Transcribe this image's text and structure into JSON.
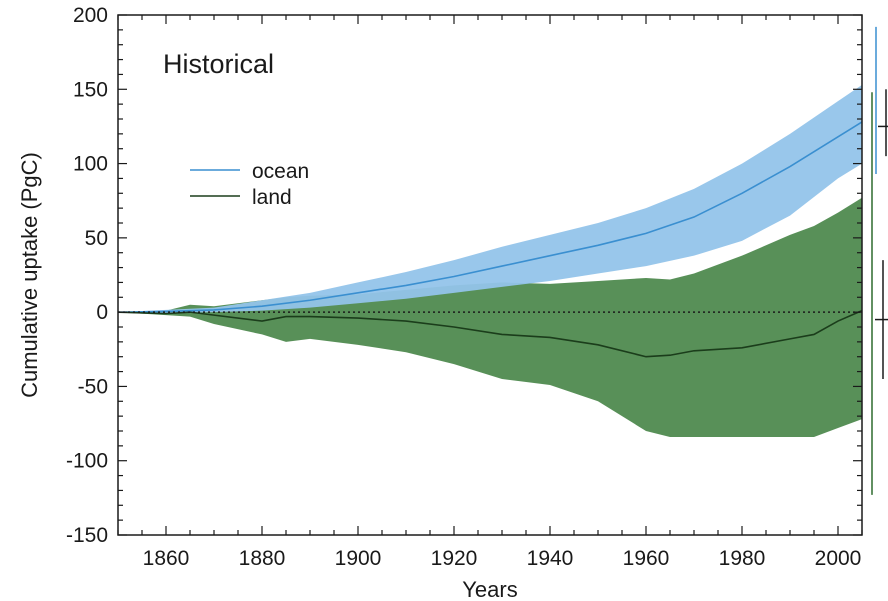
{
  "chart_data": {
    "type": "area",
    "panel_label": "Historical",
    "xlabel": "Years",
    "ylabel": "Cumulative uptake (PgC)",
    "xlim": [
      1850,
      2005
    ],
    "ylim": [
      -150,
      200
    ],
    "x_ticks": [
      1860,
      1880,
      1900,
      1920,
      1940,
      1960,
      1980,
      2000
    ],
    "y_ticks": [
      -150,
      -100,
      -50,
      0,
      50,
      100,
      150,
      200
    ],
    "legend_position": "upper-left",
    "zero_line": "dotted",
    "series": [
      {
        "name": "ocean",
        "color": "#3a8fd0",
        "band_color": "#93c4ea",
        "x": [
          1850,
          1860,
          1870,
          1880,
          1890,
          1900,
          1910,
          1920,
          1930,
          1940,
          1950,
          1960,
          1970,
          1980,
          1990,
          2000,
          2005
        ],
        "mean": [
          0,
          0.5,
          1.5,
          4,
          8,
          13,
          18,
          24,
          31,
          38,
          45,
          53,
          64,
          80,
          98,
          118,
          128
        ],
        "lower": [
          0,
          -0.5,
          0,
          1,
          3,
          6,
          9,
          13,
          17,
          21,
          26,
          31,
          38,
          48,
          65,
          90,
          100
        ],
        "upper": [
          0,
          1.5,
          3,
          8,
          13,
          20,
          27,
          35,
          44,
          52,
          60,
          70,
          83,
          100,
          120,
          142,
          153
        ]
      },
      {
        "name": "land",
        "color": "#1b3d1b",
        "band_color": "#4f8a4f",
        "x": [
          1850,
          1860,
          1865,
          1870,
          1880,
          1885,
          1890,
          1900,
          1910,
          1920,
          1930,
          1940,
          1950,
          1960,
          1965,
          1970,
          1980,
          1990,
          1995,
          2000,
          2005
        ],
        "mean": [
          0,
          -1,
          0,
          -2,
          -6,
          -3,
          -3,
          -4,
          -6,
          -10,
          -15,
          -17,
          -22,
          -30,
          -29,
          -26,
          -24,
          -18,
          -15,
          -6,
          1
        ],
        "lower": [
          0,
          -2,
          -3,
          -8,
          -15,
          -20,
          -18,
          -22,
          -27,
          -35,
          -45,
          -49,
          -60,
          -80,
          -84,
          -84,
          -84,
          -84,
          -84,
          -78,
          -72
        ],
        "upper": [
          0,
          1,
          5,
          4,
          8,
          10,
          11,
          12,
          15,
          18,
          20,
          19,
          21,
          23,
          22,
          26,
          38,
          52,
          58,
          67,
          77
        ]
      }
    ],
    "side_bars": [
      {
        "color": "#3a8fd0",
        "range": [
          93,
          192
        ]
      },
      {
        "color": "#1a1a1a",
        "center": 125,
        "range": [
          105,
          150
        ]
      },
      {
        "color": "#2f6b2f",
        "range": [
          -123,
          148
        ]
      },
      {
        "color": "#1a1a1a",
        "center": -5,
        "range": [
          -45,
          35
        ]
      }
    ]
  }
}
